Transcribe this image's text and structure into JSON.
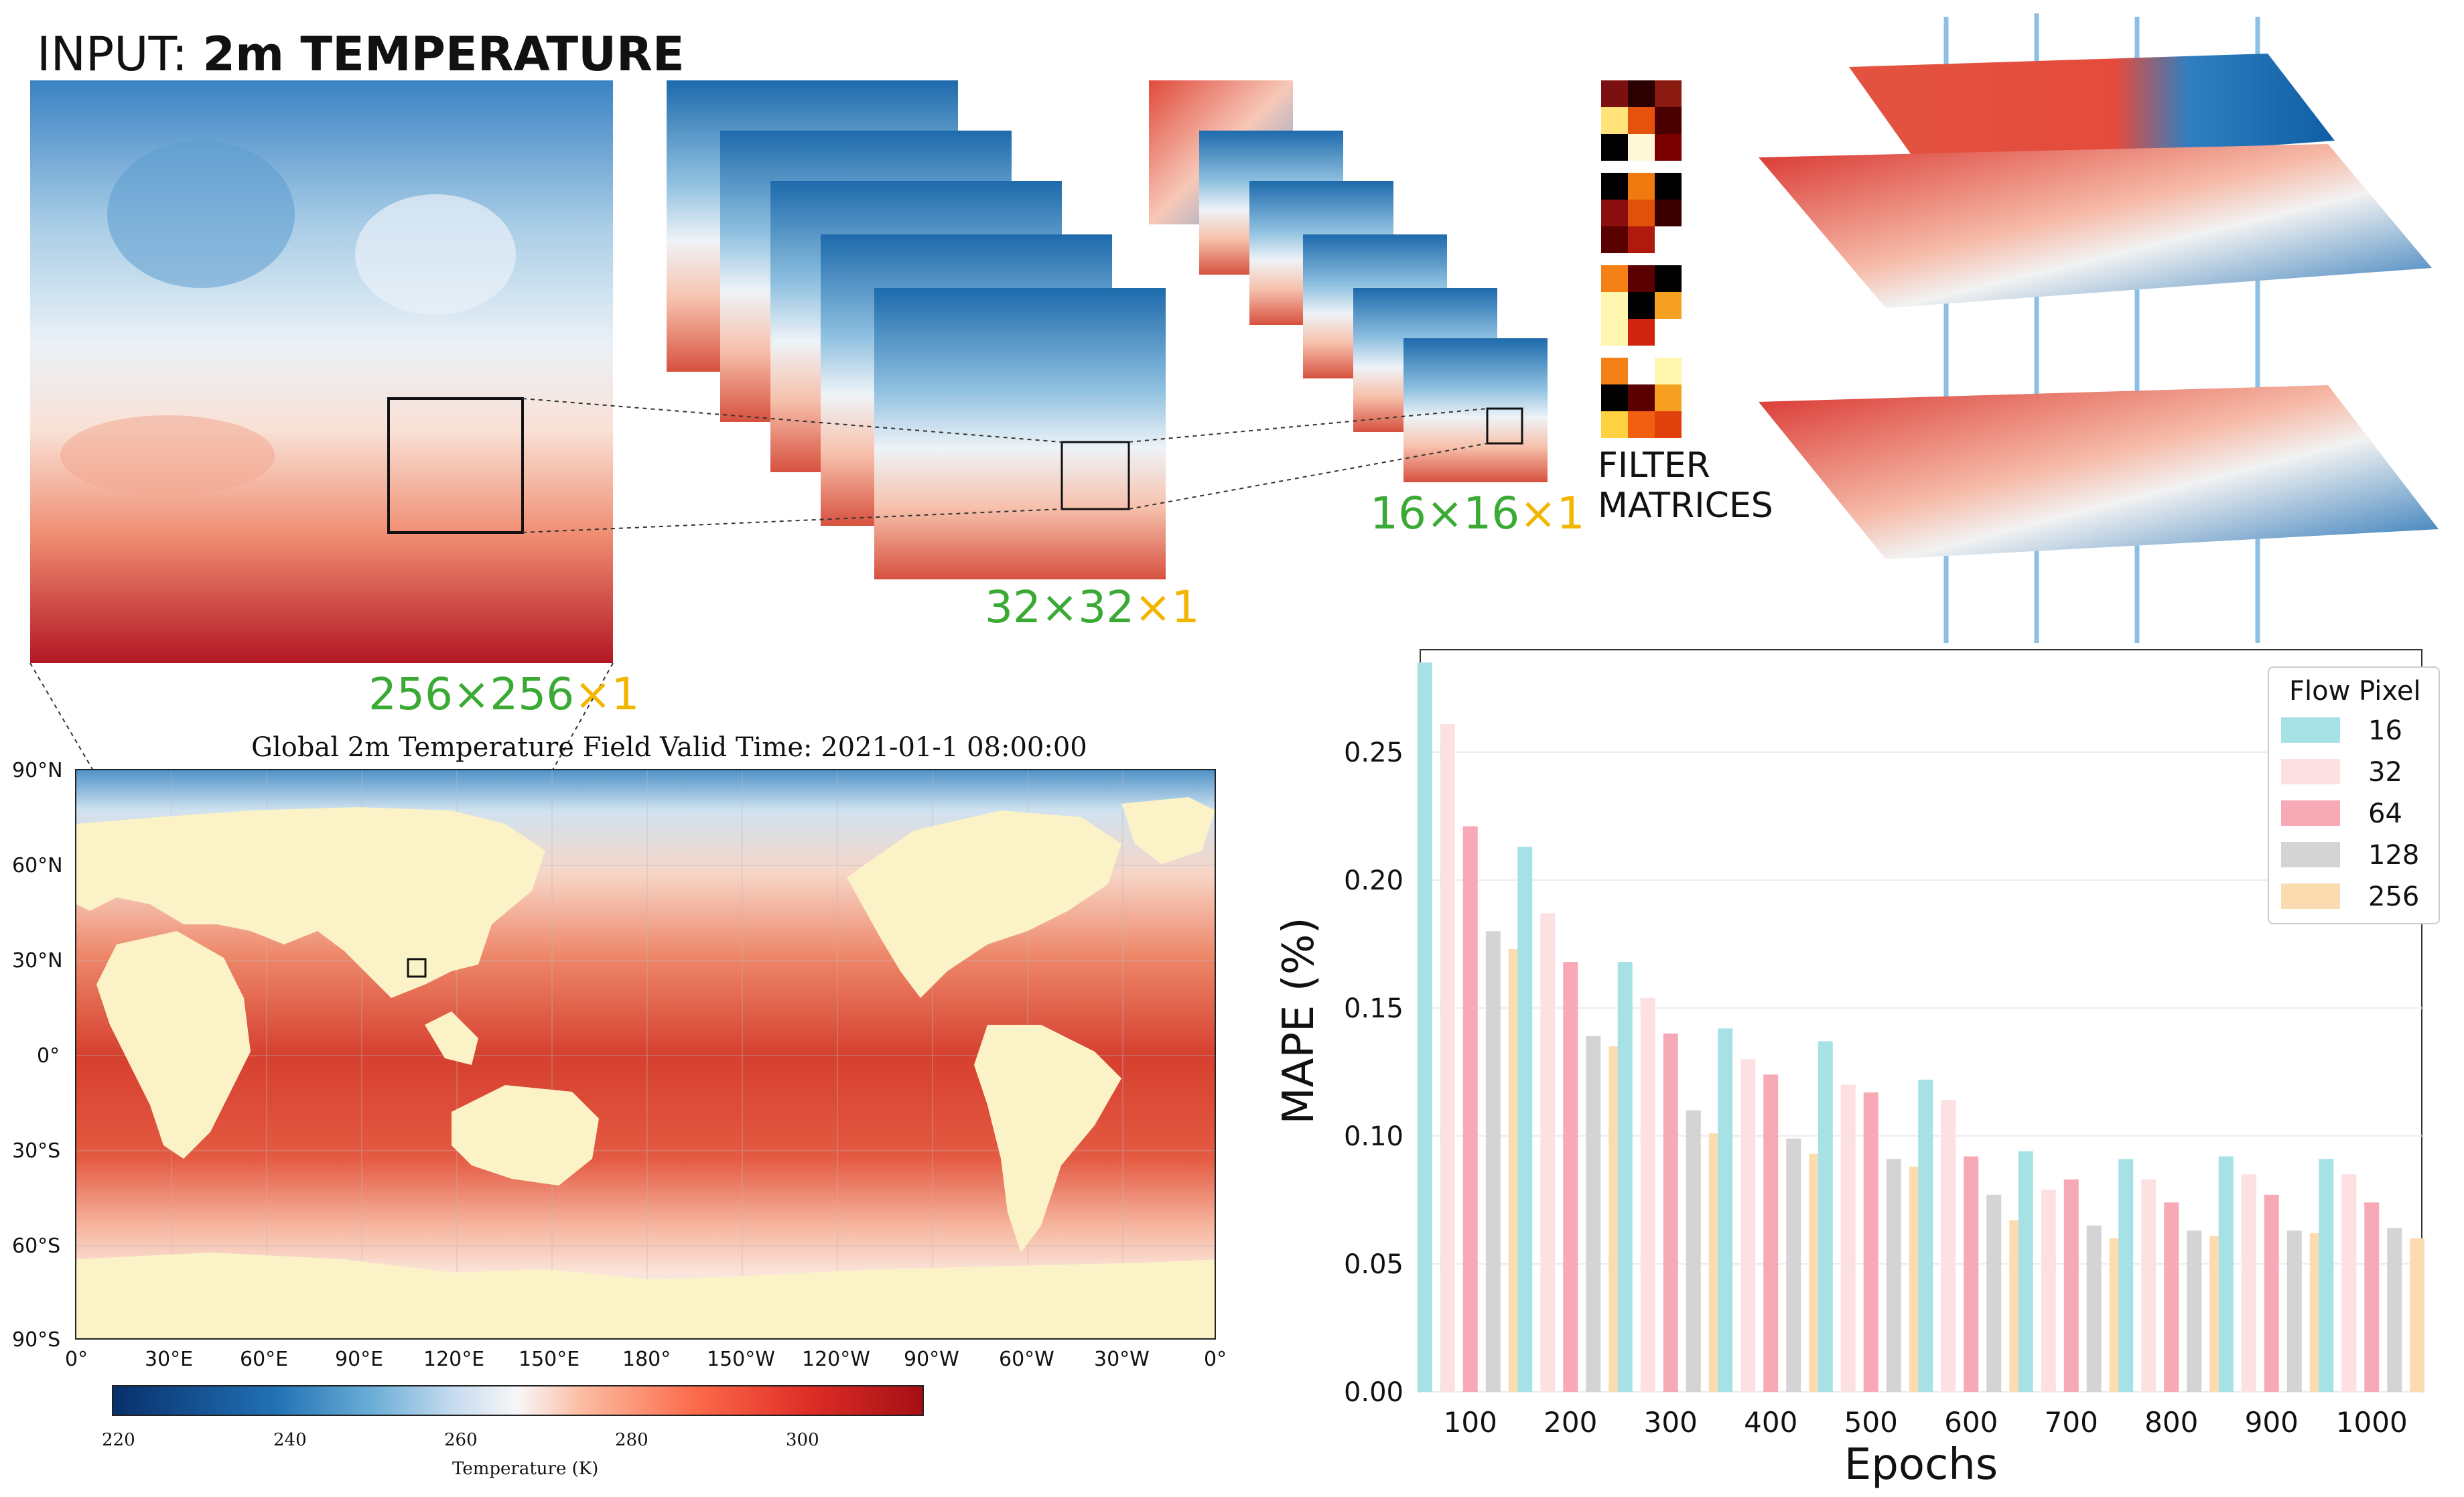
{
  "pipeline": {
    "input_prefix": "INPUT: ",
    "input_bold": "2m TEMPERATURE",
    "dim_256_main": "256×256",
    "dim_256_suffix": "×1",
    "dim_32_main": "32×32",
    "dim_32_suffix": "×1",
    "dim_16_main": "16×16",
    "dim_16_suffix": "×1",
    "filter_line1": "FILTER",
    "filter_line2": "MATRICES"
  },
  "map": {
    "title": "Global 2m Temperature Field     Valid Time: 2021-01-1 08:00:00",
    "lat_labels": [
      "90°N",
      "60°N",
      "30°N",
      "0°",
      "30°S",
      "60°S",
      "90°S"
    ],
    "lon_labels": [
      "0°",
      "30°E",
      "60°E",
      "90°E",
      "120°E",
      "150°E",
      "180°",
      "150°W",
      "120°W",
      "90°W",
      "60°W",
      "30°W",
      "0°"
    ],
    "colorbar_ticks": [
      "220",
      "240",
      "260",
      "280",
      "300"
    ],
    "colorbar_label": "Temperature (K)"
  },
  "chart_data": {
    "type": "bar",
    "title": "",
    "xlabel": "Epochs",
    "ylabel": "MAPE (%)",
    "ylim": [
      0,
      0.29
    ],
    "yticks": [
      "0.00",
      "0.05",
      "0.10",
      "0.15",
      "0.20",
      "0.25"
    ],
    "ytick_values": [
      0,
      0.05,
      0.1,
      0.15,
      0.2,
      0.25
    ],
    "categories": [
      "100",
      "200",
      "300",
      "400",
      "500",
      "600",
      "700",
      "800",
      "900",
      "1000"
    ],
    "legend_title": "Flow Pixel",
    "series": [
      {
        "name": "16",
        "color": "#a6e1e6",
        "values": [
          0.285,
          0.213,
          0.168,
          0.142,
          0.137,
          0.122,
          0.094,
          0.091,
          0.092,
          0.091
        ]
      },
      {
        "name": "32",
        "color": "#fde0e1",
        "values": [
          0.261,
          0.187,
          0.154,
          0.13,
          0.12,
          0.114,
          0.079,
          0.083,
          0.085,
          0.085
        ]
      },
      {
        "name": "64",
        "color": "#f7aab6",
        "values": [
          0.221,
          0.168,
          0.14,
          0.124,
          0.117,
          0.092,
          0.083,
          0.074,
          0.077,
          0.074
        ]
      },
      {
        "name": "128",
        "color": "#d4d4d4",
        "values": [
          0.18,
          0.139,
          0.11,
          0.099,
          0.091,
          0.077,
          0.065,
          0.063,
          0.063,
          0.064
        ]
      },
      {
        "name": "256",
        "color": "#fbdcb1",
        "values": [
          0.173,
          0.135,
          0.101,
          0.093,
          0.088,
          0.067,
          0.06,
          0.061,
          0.062,
          0.06
        ]
      }
    ]
  }
}
